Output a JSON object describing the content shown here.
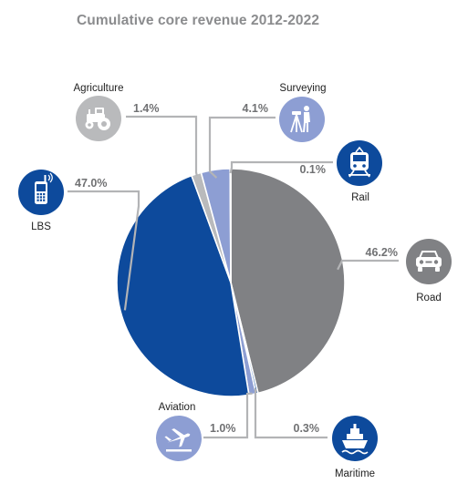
{
  "title": "Cumulative core revenue 2012-2022",
  "chart_data": {
    "type": "pie",
    "title": "Cumulative core revenue 2012-2022",
    "unit": "%",
    "slices": [
      {
        "name": "Road",
        "value": 46.2,
        "label": "46.2%",
        "color": "#808184",
        "icon": "car-icon"
      },
      {
        "name": "Maritime",
        "value": 0.3,
        "label": "0.3%",
        "color": "#0d4a9c",
        "icon": "ship-icon"
      },
      {
        "name": "Aviation",
        "value": 1.0,
        "label": "1.0%",
        "color": "#8d9ed3",
        "icon": "airplane-icon"
      },
      {
        "name": "LBS",
        "value": 47.0,
        "label": "47.0%",
        "color": "#0d4a9c",
        "icon": "mobile-phone-icon"
      },
      {
        "name": "Agriculture",
        "value": 1.4,
        "label": "1.4%",
        "color": "#b9babc",
        "icon": "tractor-icon"
      },
      {
        "name": "Surveying",
        "value": 4.1,
        "label": "4.1%",
        "color": "#8d9ed3",
        "icon": "surveyor-tripod-icon"
      },
      {
        "name": "Rail",
        "value": 0.1,
        "label": "0.1%",
        "color": "#0d4a9c",
        "icon": "train-icon"
      }
    ],
    "start_angle_deg": 0,
    "direction": "clockwise",
    "colors": {
      "leader_line": "#b3b4b6",
      "percent_text": "#707173",
      "name_text": "#222222",
      "title_text": "#8b8c8e"
    }
  }
}
